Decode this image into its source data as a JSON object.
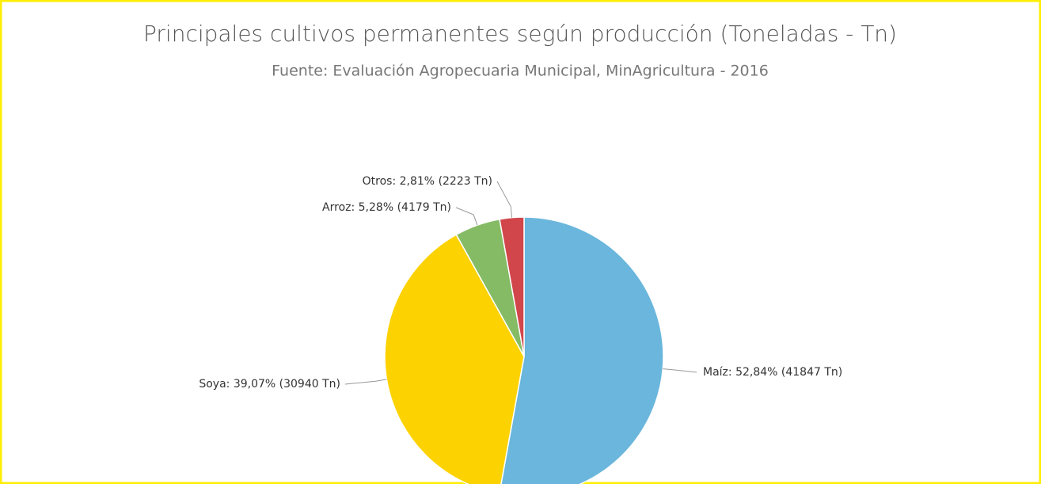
{
  "chart_data": {
    "type": "pie",
    "title": "Principales cultivos permanentes según producción (Toneladas - Tn)",
    "subtitle": "Fuente: Evaluación Agropecuaria Municipal, MinAgricultura - 2016",
    "values": [
      52.84,
      39.07,
      5.28,
      2.81
    ],
    "value_labels": [
      "Maíz: 52,84% (41847 Tn)",
      "Soya: 39,07% (30940 Tn)",
      "Arroz: 5,28% (4179 Tn)",
      "Otros: 2,81% (2223 Tn)"
    ],
    "colors": [
      "#6ab6dc",
      "#fcd200",
      "#85bb65",
      "#d1464b"
    ]
  }
}
